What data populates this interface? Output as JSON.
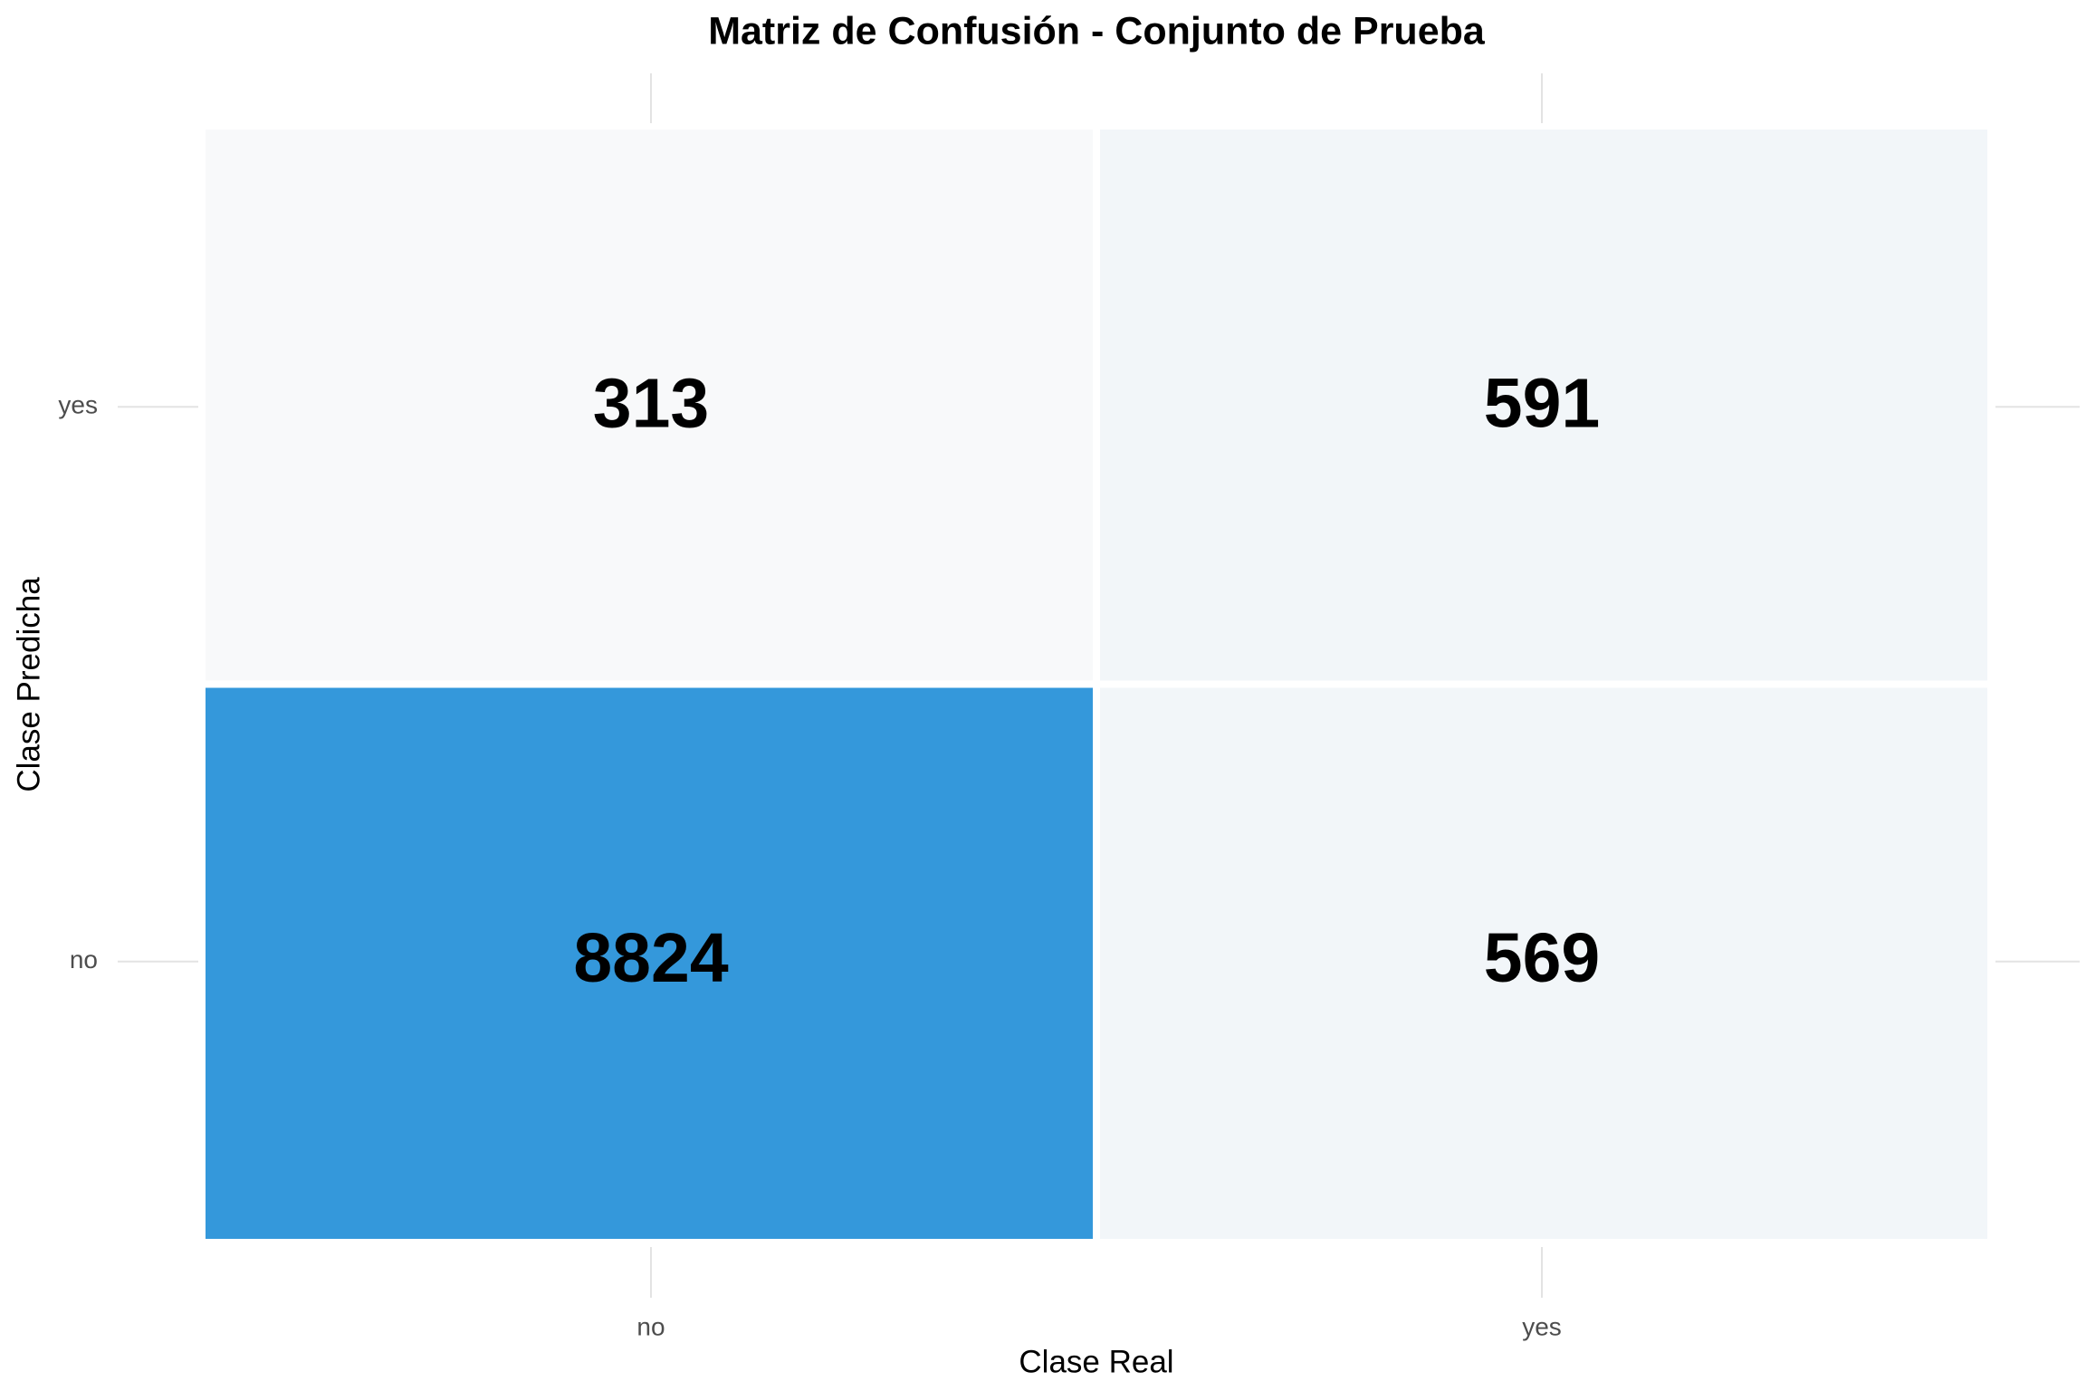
{
  "chart_data": {
    "type": "heatmap",
    "title": "Matriz de Confusión - Conjunto de Prueba",
    "x_label": "Clase Real",
    "y_label": "Clase Predicha",
    "x_categories": [
      "no",
      "yes"
    ],
    "y_categories": [
      "no",
      "yes"
    ],
    "values": [
      [
        8824,
        569
      ],
      [
        313,
        591
      ]
    ],
    "color_low": "#f8f9fa",
    "color_high": "#3498db",
    "grid": true
  }
}
